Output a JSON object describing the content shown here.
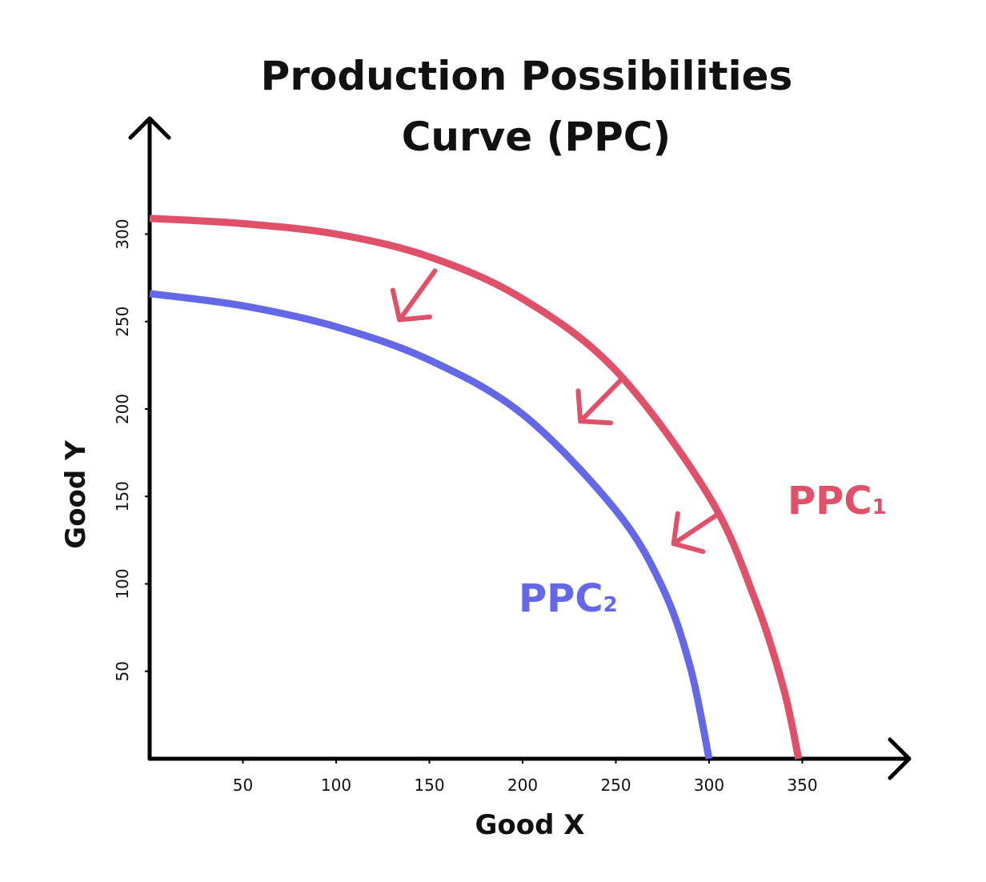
{
  "chart_data": {
    "type": "line",
    "title": [
      "Production Possibilities",
      "Curve (PPC)"
    ],
    "xlabel": "Good X",
    "ylabel": "Good Y",
    "xticks": [
      50,
      100,
      150,
      200,
      250,
      300,
      350
    ],
    "yticks": [
      50,
      100,
      150,
      200,
      250,
      300
    ],
    "xlim": [
      0,
      400
    ],
    "ylim": [
      0,
      340
    ],
    "grid": false,
    "series": [
      {
        "name": "PPC1",
        "label_main": "PPC",
        "label_sub": "1",
        "color": "#e05068",
        "x": [
          0,
          50,
          100,
          150,
          200,
          250,
          300,
          325,
          340,
          348
        ],
        "y": [
          309,
          306,
          300,
          287,
          263,
          222,
          150,
          90,
          40,
          0
        ]
      },
      {
        "name": "PPC2",
        "label_main": "PPC",
        "label_sub": "2",
        "color": "#6468e8",
        "x": [
          0,
          50,
          100,
          150,
          200,
          250,
          275,
          290,
          300
        ],
        "y": [
          266,
          259,
          247,
          228,
          197,
          142,
          98,
          52,
          0
        ]
      }
    ],
    "annotations": [
      {
        "type": "arrow",
        "direction": "down-left",
        "color": "#e05068",
        "from": [
          153,
          279
        ],
        "to": [
          134,
          251
        ]
      },
      {
        "type": "arrow",
        "direction": "down-left",
        "color": "#e05068",
        "from": [
          254,
          218
        ],
        "to": [
          231,
          193
        ]
      },
      {
        "type": "arrow",
        "direction": "down-left",
        "color": "#e05068",
        "from": [
          305,
          140
        ],
        "to": [
          281,
          123
        ]
      }
    ]
  }
}
